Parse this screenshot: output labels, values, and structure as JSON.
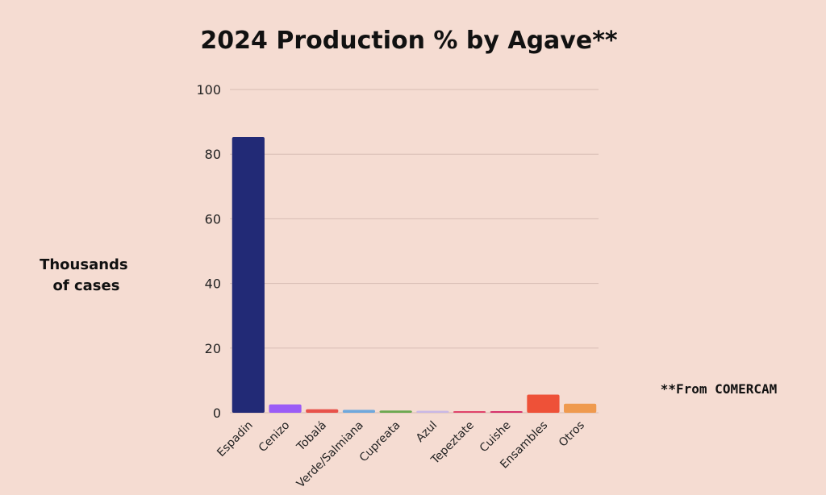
{
  "source_note": "**From COMERCAM",
  "chart_data": {
    "type": "bar",
    "title": "2024 Production % by Agave**",
    "ylabel": [
      "Thousands",
      "of cases"
    ],
    "xlabel": "",
    "ylim": [
      0,
      100
    ],
    "yticks": [
      "0",
      "20",
      "40",
      "60",
      "80",
      "100"
    ],
    "grid": true,
    "categories": [
      "Espadin",
      "Cenizo",
      "Tobalá",
      "Verde/Salmiana",
      "Cupreata",
      "Azul",
      "Tepeztate",
      "Cuishe",
      "Ensambles",
      "Otros"
    ],
    "values": [
      85.3,
      2.6,
      1.1,
      0.9,
      0.7,
      0.6,
      0.5,
      0.5,
      5.6,
      2.8
    ],
    "colors": [
      "#222a76",
      "#9b5cf6",
      "#e8524a",
      "#6fa8dc",
      "#6aa84f",
      "#c9b8e6",
      "#e0436a",
      "#d6336c",
      "#ee5138",
      "#ef9a4e"
    ]
  }
}
